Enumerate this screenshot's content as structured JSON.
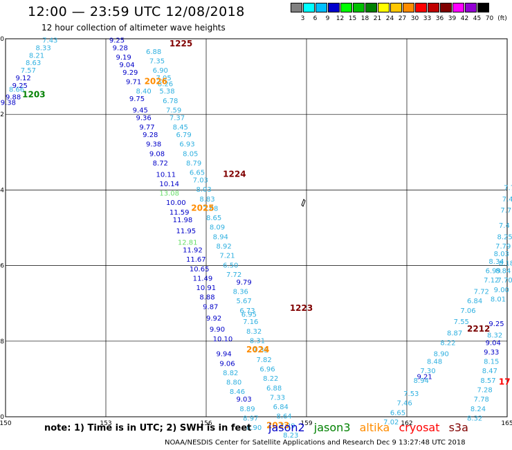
{
  "title": "12:00 — 23:59 UTC 12/08/2018",
  "subtitle": "12 hour collection of altimeter wave heights",
  "legend": {
    "unit": "(ft)",
    "bins": [
      {
        "label": "3",
        "color": "#808080"
      },
      {
        "label": "6",
        "color": "#00ffff"
      },
      {
        "label": "9",
        "color": "#00bfff"
      },
      {
        "label": "12",
        "color": "#0000cd"
      },
      {
        "label": "15",
        "color": "#00ff00"
      },
      {
        "label": "18",
        "color": "#00c000"
      },
      {
        "label": "21",
        "color": "#008000"
      },
      {
        "label": "24",
        "color": "#ffff00"
      },
      {
        "label": "27",
        "color": "#ffc800"
      },
      {
        "label": "30",
        "color": "#ff8c00"
      },
      {
        "label": "33",
        "color": "#ff0000"
      },
      {
        "label": "36",
        "color": "#c00000"
      },
      {
        "label": "39",
        "color": "#800000"
      },
      {
        "label": "42",
        "color": "#ff00ff"
      },
      {
        "label": "45",
        "color": "#9400d3"
      },
      {
        "label": "70",
        "color": "#000000"
      }
    ]
  },
  "map": {
    "lon_ticks": [
      "150",
      "153",
      "156",
      "159",
      "162",
      "165"
    ],
    "lat_ticks": [
      "-50",
      "-52",
      "-54",
      "-56",
      "-58",
      "-60"
    ]
  },
  "colors": {
    "jason2": "#0000c8",
    "jason3": "#008000",
    "altika": "#ff8c00",
    "cryosat": "#ff0000",
    "s3a": "#800000",
    "light": "#2fb0e0",
    "green_light": "#66dd66",
    "dark_red": "#7a0000"
  },
  "tracks": [
    {
      "name": "track-1203",
      "color": "light",
      "points": [
        {
          "lat": -50.1,
          "lon": 151.1,
          "v": "7.43"
        },
        {
          "lat": -50.3,
          "lon": 150.9,
          "v": "8.33"
        },
        {
          "lat": -50.5,
          "lon": 150.7,
          "v": "8.21"
        },
        {
          "lat": -50.7,
          "lon": 150.6,
          "v": "8.63"
        },
        {
          "lat": -50.9,
          "lon": 150.45,
          "v": "7.57"
        },
        {
          "lat": -51.4,
          "lon": 150.1,
          "v": "8.66"
        }
      ]
    },
    {
      "name": "track-1203b",
      "color": "jason2",
      "points": [
        {
          "lat": -51.1,
          "lon": 150.3,
          "v": "9.12"
        },
        {
          "lat": -51.3,
          "lon": 150.2,
          "v": "9.25"
        },
        {
          "lat": -51.6,
          "lon": 150.0,
          "v": "9.88"
        },
        {
          "lat": -51.75,
          "lon": 149.85,
          "v": "9.38"
        }
      ]
    },
    {
      "name": "track-1224-dark",
      "color": "jason2",
      "points": [
        {
          "lat": -50.1,
          "lon": 153.1,
          "v": "9.25"
        },
        {
          "lat": -50.3,
          "lon": 153.2,
          "v": "9.28"
        },
        {
          "lat": -50.55,
          "lon": 153.3,
          "v": "9.19"
        },
        {
          "lat": -50.75,
          "lon": 153.4,
          "v": "9.04"
        },
        {
          "lat": -50.95,
          "lon": 153.5,
          "v": "9.29"
        },
        {
          "lat": -51.2,
          "lon": 153.6,
          "v": "9.71"
        },
        {
          "lat": -51.65,
          "lon": 153.7,
          "v": "9.75"
        },
        {
          "lat": -51.95,
          "lon": 153.8,
          "v": "9.45"
        },
        {
          "lat": -52.15,
          "lon": 153.9,
          "v": "9.36"
        },
        {
          "lat": -52.4,
          "lon": 154.0,
          "v": "9.77"
        },
        {
          "lat": -52.6,
          "lon": 154.1,
          "v": "9.28"
        },
        {
          "lat": -52.85,
          "lon": 154.2,
          "v": "9.38"
        },
        {
          "lat": -53.1,
          "lon": 154.3,
          "v": "9.08"
        },
        {
          "lat": -53.35,
          "lon": 154.4,
          "v": "8.72"
        },
        {
          "lat": -53.65,
          "lon": 154.5,
          "v": "10.11"
        },
        {
          "lat": -53.9,
          "lon": 154.6,
          "v": "10.14"
        },
        {
          "lat": -54.4,
          "lon": 154.8,
          "v": "10.00"
        },
        {
          "lat": -54.65,
          "lon": 154.9,
          "v": "11.59"
        },
        {
          "lat": -54.85,
          "lon": 155.0,
          "v": "11.98"
        },
        {
          "lat": -55.15,
          "lon": 155.1,
          "v": "11.95"
        },
        {
          "lat": -55.65,
          "lon": 155.3,
          "v": "11.92"
        },
        {
          "lat": -55.9,
          "lon": 155.4,
          "v": "11.67"
        },
        {
          "lat": -56.15,
          "lon": 155.5,
          "v": "10.65"
        },
        {
          "lat": -56.4,
          "lon": 155.6,
          "v": "11.49"
        },
        {
          "lat": -56.65,
          "lon": 155.7,
          "v": "10.91"
        },
        {
          "lat": -56.9,
          "lon": 155.8,
          "v": "8.88"
        },
        {
          "lat": -57.15,
          "lon": 155.9,
          "v": "9.87"
        },
        {
          "lat": -57.45,
          "lon": 156.0,
          "v": "9.92"
        },
        {
          "lat": -57.75,
          "lon": 156.1,
          "v": "9.90"
        },
        {
          "lat": -58.0,
          "lon": 156.2,
          "v": "10.10"
        }
      ]
    },
    {
      "name": "track-1224-light",
      "color": "light",
      "points": [
        {
          "lat": -50.4,
          "lon": 154.2,
          "v": "6.88"
        },
        {
          "lat": -50.65,
          "lon": 154.3,
          "v": "7.35"
        },
        {
          "lat": -50.9,
          "lon": 154.4,
          "v": "6.90"
        },
        {
          "lat": -51.1,
          "lon": 154.5,
          "v": "7.05"
        },
        {
          "lat": -51.25,
          "lon": 154.55,
          "v": "8.26"
        },
        {
          "lat": -51.45,
          "lon": 153.9,
          "v": "8.40"
        },
        {
          "lat": -51.45,
          "lon": 154.6,
          "v": "5.38"
        },
        {
          "lat": -51.7,
          "lon": 154.7,
          "v": "6.78"
        },
        {
          "lat": -51.95,
          "lon": 154.8,
          "v": "7.59"
        },
        {
          "lat": -52.15,
          "lon": 154.9,
          "v": "7.37"
        },
        {
          "lat": -52.4,
          "lon": 155.0,
          "v": "8.45"
        },
        {
          "lat": -52.6,
          "lon": 155.1,
          "v": "6.79"
        },
        {
          "lat": -52.85,
          "lon": 155.2,
          "v": "6.93"
        },
        {
          "lat": -53.1,
          "lon": 155.3,
          "v": "8.05"
        },
        {
          "lat": -53.35,
          "lon": 155.4,
          "v": "8.79"
        },
        {
          "lat": -53.6,
          "lon": 155.5,
          "v": "6.65"
        },
        {
          "lat": -53.8,
          "lon": 155.6,
          "v": "7.03"
        },
        {
          "lat": -54.05,
          "lon": 155.7,
          "v": "8.03"
        },
        {
          "lat": -54.3,
          "lon": 155.8,
          "v": "8.83"
        },
        {
          "lat": -54.55,
          "lon": 155.9,
          "v": "7.68"
        },
        {
          "lat": -54.8,
          "lon": 156.0,
          "v": "8.65"
        },
        {
          "lat": -55.05,
          "lon": 156.1,
          "v": "8.09"
        },
        {
          "lat": -55.3,
          "lon": 156.2,
          "v": "8.94"
        },
        {
          "lat": -55.55,
          "lon": 156.3,
          "v": "8.92"
        },
        {
          "lat": -55.8,
          "lon": 156.4,
          "v": "7.21"
        },
        {
          "lat": -56.05,
          "lon": 156.5,
          "v": "6.50"
        },
        {
          "lat": -56.3,
          "lon": 156.6,
          "v": "7.72"
        },
        {
          "lat": -56.75,
          "lon": 156.8,
          "v": "8.36"
        },
        {
          "lat": -57.0,
          "lon": 156.9,
          "v": "5.67"
        },
        {
          "lat": -57.25,
          "lon": 157.0,
          "v": "6.73"
        },
        {
          "lat": -57.35,
          "lon": 157.05,
          "v": "6.95"
        },
        {
          "lat": -57.55,
          "lon": 157.1,
          "v": "7.16"
        },
        {
          "lat": -57.8,
          "lon": 157.2,
          "v": "8.32"
        },
        {
          "lat": -58.05,
          "lon": 157.3,
          "v": "8.31"
        },
        {
          "lat": -58.3,
          "lon": 157.4,
          "v": "7.33"
        },
        {
          "lat": -58.55,
          "lon": 157.5,
          "v": "7.82"
        },
        {
          "lat": -58.8,
          "lon": 157.6,
          "v": "6.96"
        },
        {
          "lat": -59.05,
          "lon": 157.7,
          "v": "8.22"
        },
        {
          "lat": -59.3,
          "lon": 157.8,
          "v": "6.88"
        },
        {
          "lat": -59.55,
          "lon": 157.9,
          "v": "7.33"
        },
        {
          "lat": -59.8,
          "lon": 158.0,
          "v": "6.84"
        },
        {
          "lat": -60.05,
          "lon": 158.1,
          "v": "8.64"
        },
        {
          "lat": -60.3,
          "lon": 158.2,
          "v": "7.29"
        },
        {
          "lat": -60.55,
          "lon": 158.3,
          "v": "8.23"
        }
      ]
    },
    {
      "name": "track-1224-green",
      "color": "green_light",
      "points": [
        {
          "lat": -54.15,
          "lon": 154.6,
          "v": "13.08"
        },
        {
          "lat": -55.45,
          "lon": 155.15,
          "v": "12.81"
        }
      ]
    },
    {
      "name": "track-1223-dark",
      "color": "jason2",
      "points": [
        {
          "lat": -56.5,
          "lon": 156.9,
          "v": "9.79"
        },
        {
          "lat": -58.4,
          "lon": 156.3,
          "v": "9.94"
        },
        {
          "lat": -58.65,
          "lon": 156.4,
          "v": "9.06"
        },
        {
          "lat": -59.6,
          "lon": 156.9,
          "v": "9.03"
        }
      ]
    },
    {
      "name": "track-1223-light",
      "color": "light",
      "points": [
        {
          "lat": -58.9,
          "lon": 156.5,
          "v": "8.82"
        },
        {
          "lat": -59.15,
          "lon": 156.6,
          "v": "8.80"
        },
        {
          "lat": -59.4,
          "lon": 156.7,
          "v": "8.46"
        },
        {
          "lat": -59.85,
          "lon": 157.0,
          "v": "8.89"
        },
        {
          "lat": -60.1,
          "lon": 157.1,
          "v": "8.97"
        },
        {
          "lat": -60.35,
          "lon": 157.2,
          "v": "8.90"
        }
      ]
    },
    {
      "name": "track-2212-dark",
      "color": "jason2",
      "points": [
        {
          "lat": -57.6,
          "lon": 164.45,
          "v": "9.25"
        },
        {
          "lat": -58.1,
          "lon": 164.35,
          "v": "9.04"
        },
        {
          "lat": -58.35,
          "lon": 164.3,
          "v": "9.33"
        },
        {
          "lat": -59.0,
          "lon": 162.3,
          "v": "9.21"
        }
      ]
    },
    {
      "name": "track-2212-light",
      "color": "light",
      "points": [
        {
          "lat": -55.75,
          "lon": 164.6,
          "v": "8.03"
        },
        {
          "lat": -56.0,
          "lon": 164.75,
          "v": "8.18"
        },
        {
          "lat": -56.2,
          "lon": 164.65,
          "v": "8.84"
        },
        {
          "lat": -56.45,
          "lon": 164.3,
          "v": "7.12"
        },
        {
          "lat": -56.45,
          "lon": 164.7,
          "v": "7.70"
        },
        {
          "lat": -56.2,
          "lon": 164.35,
          "v": "6.99"
        },
        {
          "lat": -56.7,
          "lon": 164.6,
          "v": "9.00"
        },
        {
          "lat": -56.75,
          "lon": 164.0,
          "v": "7.72"
        },
        {
          "lat": -56.95,
          "lon": 164.5,
          "v": "8.01"
        },
        {
          "lat": -57.0,
          "lon": 163.8,
          "v": "6.84"
        },
        {
          "lat": -57.25,
          "lon": 163.6,
          "v": "7.06"
        },
        {
          "lat": -57.55,
          "lon": 163.4,
          "v": "7.55"
        },
        {
          "lat": -57.85,
          "lon": 163.2,
          "v": "8.87"
        },
        {
          "lat": -57.9,
          "lon": 164.4,
          "v": "8.32"
        },
        {
          "lat": -58.1,
          "lon": 163.0,
          "v": "8.22"
        },
        {
          "lat": -58.4,
          "lon": 162.8,
          "v": "8.90"
        },
        {
          "lat": -58.6,
          "lon": 162.6,
          "v": "8.48"
        },
        {
          "lat": -58.6,
          "lon": 164.3,
          "v": "8.15"
        },
        {
          "lat": -58.85,
          "lon": 162.4,
          "v": "7.30"
        },
        {
          "lat": -58.85,
          "lon": 164.25,
          "v": "8.47"
        },
        {
          "lat": -59.1,
          "lon": 162.2,
          "v": "8.94"
        },
        {
          "lat": -59.1,
          "lon": 164.2,
          "v": "8.57"
        },
        {
          "lat": -59.35,
          "lon": 164.1,
          "v": "7.28"
        },
        {
          "lat": -59.45,
          "lon": 161.9,
          "v": "7.53"
        },
        {
          "lat": -59.6,
          "lon": 164.0,
          "v": "7.78"
        },
        {
          "lat": -59.7,
          "lon": 161.7,
          "v": "7.46"
        },
        {
          "lat": -59.85,
          "lon": 163.9,
          "v": "8.24"
        },
        {
          "lat": -59.95,
          "lon": 161.5,
          "v": "6.65"
        },
        {
          "lat": -60.1,
          "lon": 163.8,
          "v": "8.32"
        },
        {
          "lat": -60.2,
          "lon": 161.3,
          "v": "7.02"
        },
        {
          "lat": -54.0,
          "lon": 164.9,
          "v": "7.7"
        },
        {
          "lat": -54.3,
          "lon": 164.85,
          "v": "7.4"
        },
        {
          "lat": -54.6,
          "lon": 164.8,
          "v": "7.7"
        },
        {
          "lat": -55.0,
          "lon": 164.75,
          "v": "7.4"
        },
        {
          "lat": -55.3,
          "lon": 164.7,
          "v": "8.25"
        },
        {
          "lat": -55.55,
          "lon": 164.65,
          "v": "7.79"
        },
        {
          "lat": -55.95,
          "lon": 164.45,
          "v": "8.34"
        }
      ]
    }
  ],
  "track_labels": [
    {
      "text": "1203",
      "lat": -51.55,
      "lon": 150.5,
      "color": "jason3"
    },
    {
      "text": "1225",
      "lat": -50.2,
      "lon": 154.9,
      "color": "s3a"
    },
    {
      "text": "2026",
      "lat": -51.2,
      "lon": 154.15,
      "color": "altika"
    },
    {
      "text": "1224",
      "lat": -53.65,
      "lon": 156.5,
      "color": "s3a"
    },
    {
      "text": "2025",
      "lat": -54.55,
      "lon": 155.55,
      "color": "altika"
    },
    {
      "text": "1223",
      "lat": -57.2,
      "lon": 158.5,
      "color": "s3a"
    },
    {
      "text": "2024",
      "lat": -58.3,
      "lon": 157.2,
      "color": "altika"
    },
    {
      "text": "2023",
      "lat": -60.3,
      "lon": 157.8,
      "color": "altika"
    },
    {
      "text": "2212",
      "lat": -57.75,
      "lon": 163.8,
      "color": "dark_red"
    },
    {
      "text": "17",
      "lat": -59.15,
      "lon": 164.75,
      "color": "cryosat"
    }
  ],
  "footer": {
    "note": "note:  1) Time is in UTC;  2) SWH is in feet",
    "sats": [
      {
        "text": "jason2",
        "color": "jason2"
      },
      {
        "text": "jason3",
        "color": "jason3"
      },
      {
        "text": "altika",
        "color": "altika"
      },
      {
        "text": "cryosat",
        "color": "cryosat"
      },
      {
        "text": "s3a",
        "color": "s3a"
      }
    ],
    "credit": "NOAA/NESDIS Center for Satellite Applications and Research    Dec  9 13:27:48 UTC 2018"
  }
}
